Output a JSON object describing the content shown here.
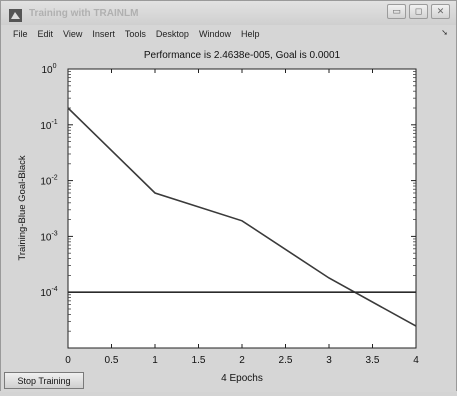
{
  "window": {
    "title": "Training with TRAINLM",
    "controls": [
      "minimize",
      "maximize",
      "close"
    ]
  },
  "menu": {
    "items": [
      "File",
      "Edit",
      "View",
      "Insert",
      "Tools",
      "Desktop",
      "Window",
      "Help"
    ]
  },
  "stop_button_label": "Stop Training",
  "chart_data": {
    "type": "line",
    "title": "Performance is 2.4638e-005, Goal is 0.0001",
    "xlabel": "4 Epochs",
    "ylabel": "Training-Blue  Goal-Black",
    "xlim": [
      0,
      4
    ],
    "ylim": [
      1e-05,
      1
    ],
    "yscale": "log",
    "x_ticks": [
      "0",
      "0.5",
      "1",
      "1.5",
      "2",
      "2.5",
      "3",
      "3.5",
      "4"
    ],
    "y_ticks": [
      {
        "base": "10",
        "exp": "0"
      },
      {
        "base": "10",
        "exp": "-1"
      },
      {
        "base": "10",
        "exp": "-2"
      },
      {
        "base": "10",
        "exp": "-3"
      },
      {
        "base": "10",
        "exp": "-4"
      }
    ],
    "series": [
      {
        "role": "training",
        "color": "#3a3a3a",
        "x": [
          0,
          1,
          2,
          3,
          4
        ],
        "y": [
          0.2,
          0.006,
          0.0019,
          0.00018,
          2.4638e-05
        ]
      },
      {
        "role": "goal",
        "color": "#2a2a2a",
        "x": [
          0,
          4
        ],
        "y": [
          0.0001,
          0.0001
        ]
      }
    ],
    "grid": false
  }
}
